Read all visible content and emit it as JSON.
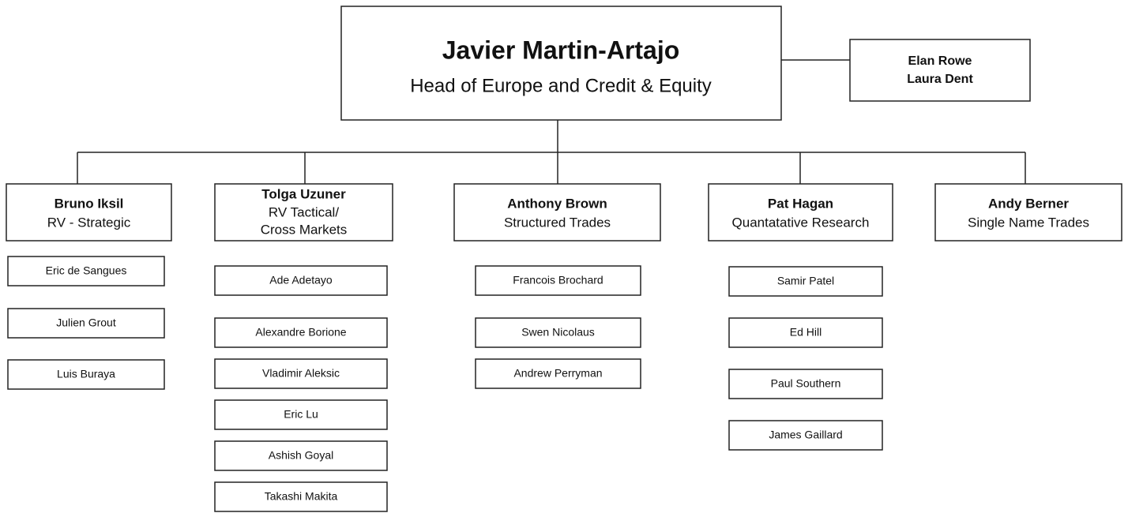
{
  "head": {
    "name": "Javier Martin-Artajo",
    "title": "Head of Europe and Credit & Equity"
  },
  "assistants": [
    "Elan Rowe",
    "Laura Dent"
  ],
  "teams": [
    {
      "name": "Bruno Iksil",
      "role": [
        "RV - Strategic"
      ],
      "members": [
        "Eric de Sangues",
        "Julien Grout",
        "Luis Buraya"
      ]
    },
    {
      "name": "Tolga Uzuner",
      "role": [
        "RV Tactical/",
        "Cross Markets"
      ],
      "members": [
        "Ade Adetayo",
        "Alexandre Borione",
        "Vladimir Aleksic",
        "Eric Lu",
        "Ashish Goyal",
        "Takashi Makita"
      ]
    },
    {
      "name": "Anthony Brown",
      "role": [
        "Structured Trades"
      ],
      "members": [
        "Francois Brochard",
        "Swen Nicolaus",
        "Andrew Perryman"
      ]
    },
    {
      "name": "Pat Hagan",
      "role": [
        "Quantatative Research"
      ],
      "members": [
        "Samir Patel",
        "Ed Hill",
        "Paul Southern",
        "James Gaillard"
      ]
    },
    {
      "name": "Andy Berner",
      "role": [
        "Single Name Trades"
      ],
      "members": []
    }
  ]
}
